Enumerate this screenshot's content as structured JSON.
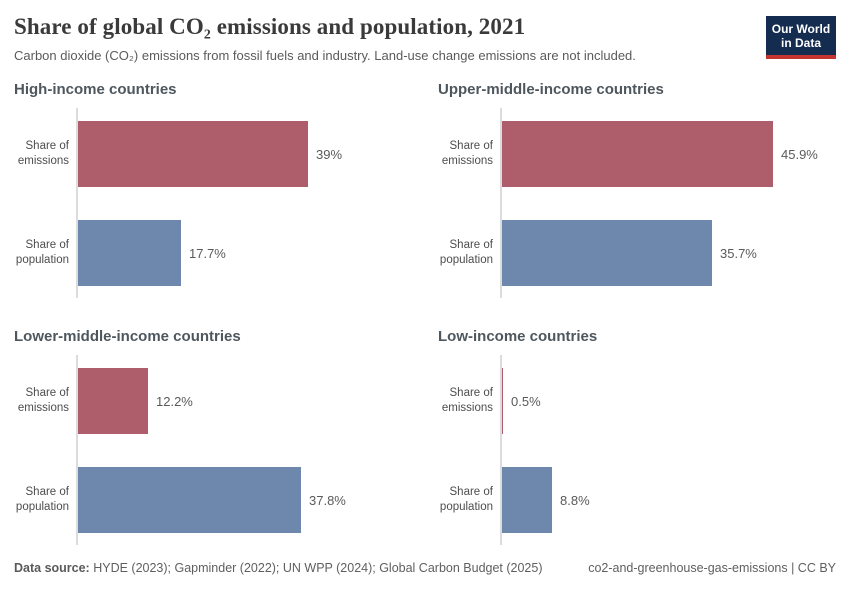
{
  "header": {
    "title": "Share of global CO₂ emissions and population, 2021",
    "subtitle": "Carbon dioxide (CO₂) emissions from fossil fuels and industry. Land-use change emissions are not included.",
    "logo": {
      "line1": "Our World",
      "line2": "in Data",
      "bg_color": "#132c50",
      "accent_color": "#c5352f"
    }
  },
  "chart_data": {
    "type": "bar",
    "layout": "2x2 small multiples, horizontal bars",
    "categories": [
      "Share of emissions",
      "Share of population"
    ],
    "panels": [
      {
        "title": "High-income countries",
        "values": [
          39,
          17.7
        ],
        "labels": [
          "39%",
          "17.7%"
        ]
      },
      {
        "title": "Upper-middle-income countries",
        "values": [
          45.9,
          35.7
        ],
        "labels": [
          "45.9%",
          "35.7%"
        ]
      },
      {
        "title": "Lower-middle-income countries",
        "values": [
          12.2,
          37.8
        ],
        "labels": [
          "12.2%",
          "37.8%"
        ]
      },
      {
        "title": "Low-income countries",
        "values": [
          0.5,
          8.8
        ],
        "labels": [
          "0.5%",
          "8.8%"
        ]
      }
    ],
    "series_colors": {
      "emissions": "#ad5e6a",
      "population": "#6e87ad"
    },
    "axis_color": "#dcdcdc",
    "xlim": [
      0,
      50
    ],
    "grid": false,
    "legend": false
  },
  "footer": {
    "datasource_label": "Data source:",
    "datasource_text": " HYDE (2023); Gapminder (2022); UN WPP (2024); Global Carbon Budget (2025)",
    "note_right": "co2-and-greenhouse-gas-emissions | CC BY"
  }
}
